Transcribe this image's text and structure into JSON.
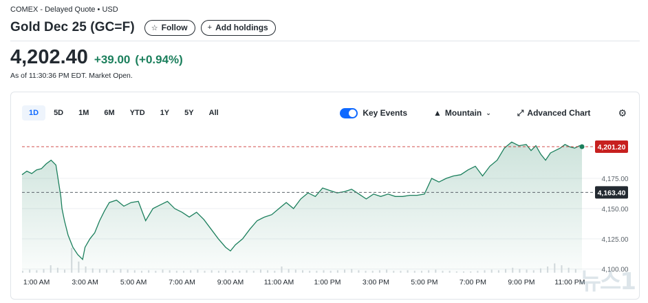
{
  "header": {
    "exchange_line": "COMEX - Delayed Quote • USD",
    "title": "Gold Dec 25 (GC=F)",
    "follow_label": "Follow",
    "add_holdings_label": "Add holdings",
    "follow_icon": "☆",
    "add_icon": "+"
  },
  "quote": {
    "price": "4,202.40",
    "change": "+39.00",
    "change_pct": "(+0.94%)",
    "as_of": "As of 11:30:36 PM EDT. Market Open.",
    "change_color": "#1b7f5c"
  },
  "chart_toolbar": {
    "ranges": [
      "1D",
      "5D",
      "1M",
      "6M",
      "YTD",
      "1Y",
      "5Y",
      "All"
    ],
    "active_range": "1D",
    "key_events_label": "Key Events",
    "key_events_enabled": true,
    "chart_type_label": "Mountain",
    "advanced_chart_label": "Advanced Chart"
  },
  "chart_data": {
    "type": "area",
    "x_tick_labels": [
      "1:00 AM",
      "3:00 AM",
      "5:00 AM",
      "7:00 AM",
      "9:00 AM",
      "11:00 AM",
      "1:00 PM",
      "3:00 PM",
      "5:00 PM",
      "7:00 PM",
      "9:00 PM",
      "11:00 PM"
    ],
    "y_tick_labels": [
      "4,175.00",
      "4,150.00",
      "4,125.00",
      "4,100.00"
    ],
    "y_ticks": [
      4175,
      4150,
      4125,
      4100
    ],
    "ylim": [
      4097,
      4212
    ],
    "x_range_hours": [
      0.4,
      23.5
    ],
    "current_price_label": "4,201.20",
    "current_price": 4201.2,
    "previous_close_label": "4,163.40",
    "previous_close": 4163.4,
    "line_color": "#1b7f5c",
    "current_label_color": "#c7201f",
    "prev_close_label_color": "#232a31",
    "series": [
      {
        "x": [
          0.4,
          0.6,
          0.8,
          1.0,
          1.2,
          1.4,
          1.6,
          1.8,
          2.0,
          2.05,
          2.15,
          2.3,
          2.5,
          2.7,
          2.9,
          3.0,
          3.2,
          3.4,
          3.6,
          3.8,
          4.0,
          4.3,
          4.6,
          4.9,
          5.2,
          5.5,
          5.8,
          6.1,
          6.4,
          6.7,
          7.0,
          7.3,
          7.6,
          7.9,
          8.2,
          8.5,
          8.8,
          9.0,
          9.2,
          9.5,
          9.8,
          10.1,
          10.4,
          10.7,
          11.0,
          11.3,
          11.6,
          11.9,
          12.2,
          12.5,
          12.8,
          13.1,
          13.4,
          13.7,
          14.0,
          14.3,
          14.6,
          14.9,
          15.2,
          15.5,
          15.8,
          16.1,
          16.4,
          16.7,
          17.0,
          17.3,
          17.6,
          17.9,
          18.2,
          18.5,
          18.8,
          19.1,
          19.4,
          19.7,
          20.0,
          20.3,
          20.6,
          20.9,
          21.2,
          21.4,
          21.6,
          21.8,
          22.0,
          22.2,
          22.4,
          22.6,
          22.8,
          23.0,
          23.2,
          23.4,
          23.5
        ],
        "y": [
          4178,
          4181,
          4179,
          4182,
          4183,
          4187,
          4190,
          4186,
          4160,
          4150,
          4140,
          4128,
          4118,
          4112,
          4108,
          4118,
          4125,
          4130,
          4140,
          4148,
          4155,
          4157,
          4152,
          4155,
          4156,
          4140,
          4150,
          4153,
          4156,
          4150,
          4147,
          4143,
          4147,
          4141,
          4133,
          4125,
          4118,
          4115,
          4120,
          4125,
          4133,
          4140,
          4143,
          4145,
          4150,
          4155,
          4150,
          4158,
          4163,
          4160,
          4167,
          4165,
          4163,
          4164,
          4166,
          4162,
          4158,
          4162,
          4160,
          4162,
          4160,
          4160,
          4161,
          4161,
          4162,
          4175,
          4172,
          4175,
          4177,
          4178,
          4182,
          4185,
          4177,
          4185,
          4190,
          4200,
          4205,
          4202,
          4203,
          4198,
          4202,
          4195,
          4190,
          4196,
          4198,
          4200,
          4203,
          4201,
          4200,
          4202,
          4201.2
        ]
      }
    ],
    "volume": [
      3,
      5,
      4,
      6,
      12,
      8,
      5,
      40,
      18,
      10,
      7,
      6,
      5,
      4,
      6,
      5,
      4,
      3,
      4,
      3,
      5,
      4,
      3,
      3,
      4,
      5,
      3,
      4,
      3,
      4,
      3,
      3,
      4,
      3,
      5,
      4,
      3,
      10,
      6,
      5,
      4,
      3,
      3,
      4,
      3,
      4,
      5,
      6,
      4,
      3,
      3,
      4,
      5,
      3,
      3,
      4,
      3,
      3,
      4,
      5,
      3,
      3,
      2,
      2,
      2,
      3,
      4,
      5,
      4,
      6,
      8,
      6,
      5,
      4,
      7,
      10,
      15,
      12,
      8,
      6
    ]
  },
  "watermark": "뉴스1"
}
